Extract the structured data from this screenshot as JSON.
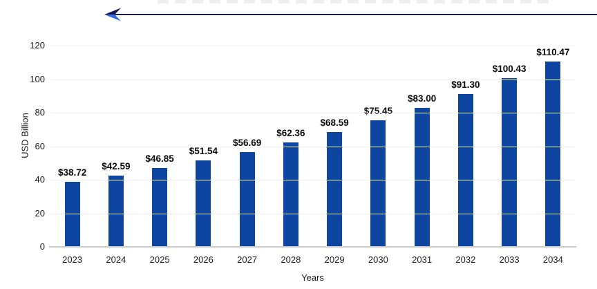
{
  "decorations": {
    "trend_arrow": {
      "direction": "left",
      "line_color": "#1c1c52",
      "head_dark_color": "#181850",
      "head_light_color": "#2f6be0"
    },
    "cutoff_text_remnant": "illegible cut-off text strip at top edge"
  },
  "chart_data": {
    "type": "bar",
    "title": "",
    "xlabel": "Years",
    "ylabel": "USD Billion",
    "categories": [
      "2023",
      "2024",
      "2025",
      "2026",
      "2027",
      "2028",
      "2029",
      "2030",
      "2031",
      "2032",
      "2033",
      "2034"
    ],
    "values": [
      38.72,
      42.59,
      46.85,
      51.54,
      56.69,
      62.36,
      68.59,
      75.45,
      83.0,
      91.3,
      100.43,
      110.47
    ],
    "value_labels": [
      "$38.72",
      "$42.59",
      "$46.85",
      "$51.54",
      "$56.69",
      "$62.36",
      "$68.59",
      "$75.45",
      "$83.00",
      "$91.30",
      "$100.43",
      "$110.47"
    ],
    "ylim": [
      0,
      120
    ],
    "yticks": [
      0,
      20,
      40,
      60,
      80,
      100,
      120
    ],
    "grid": true,
    "legend": "none",
    "colors": {
      "bar": "#0e45a0",
      "gridline": "#f1f1f1",
      "baseline": "#c9c9c9",
      "tick_text": "#1a1a1a",
      "value_label_text": "#0a0a0a"
    }
  }
}
